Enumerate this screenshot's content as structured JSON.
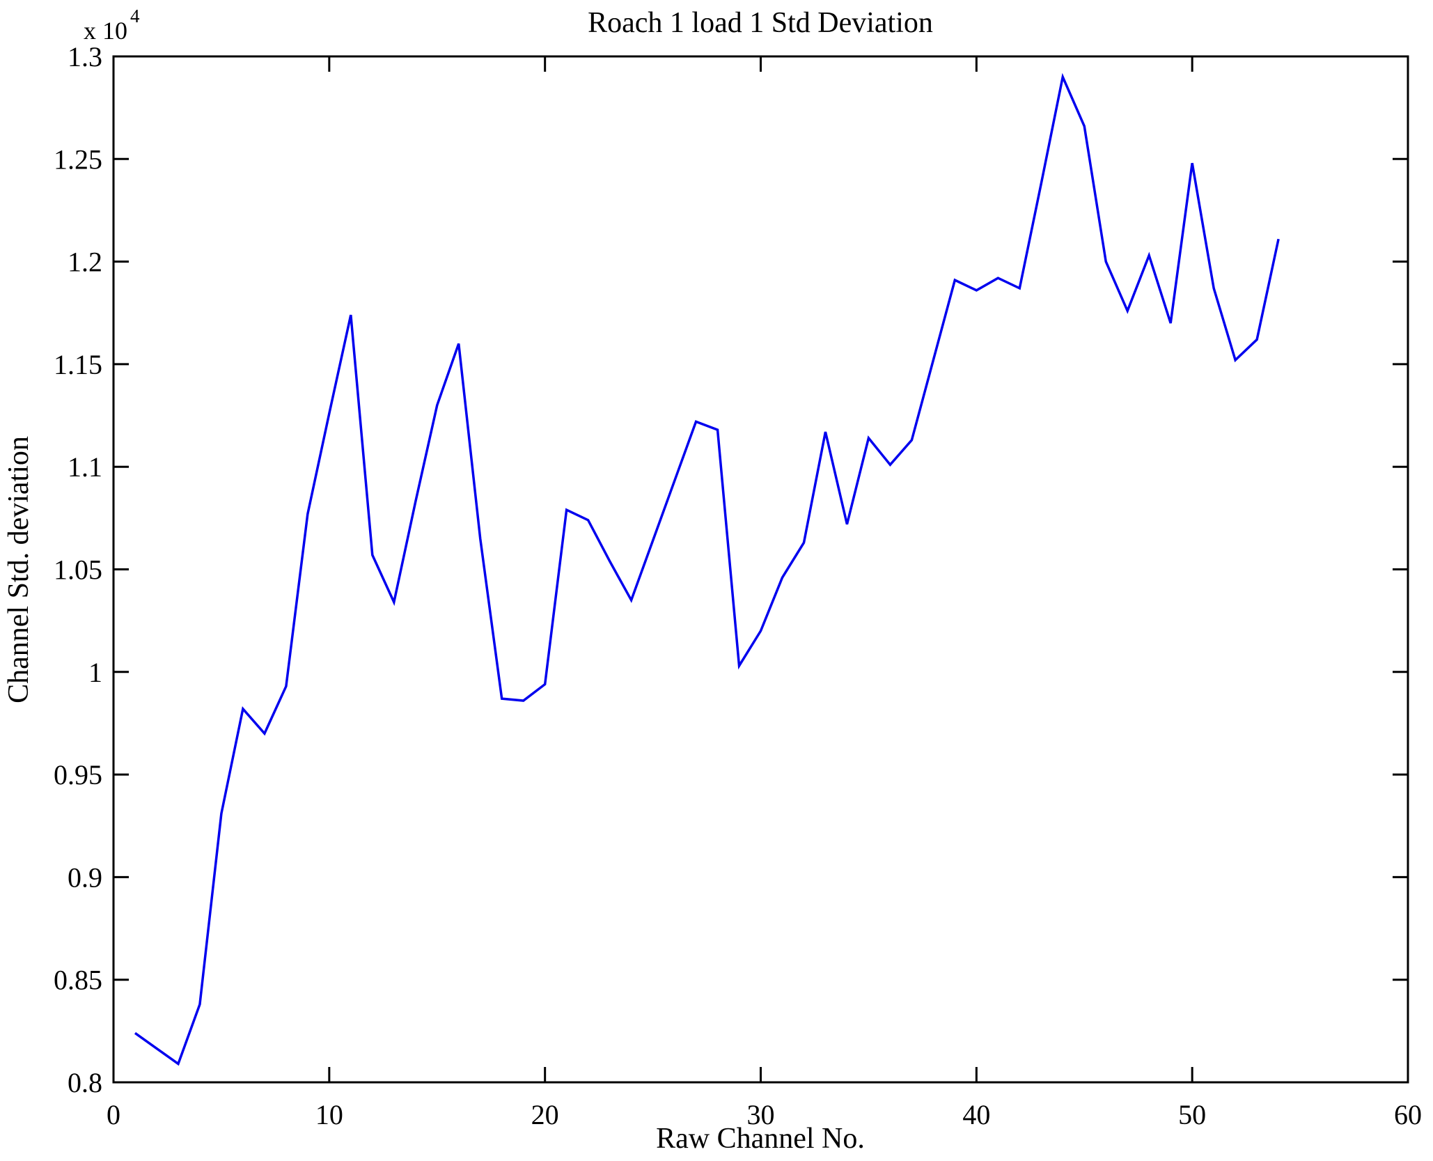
{
  "figure": {
    "background": "#ffffff",
    "axis_color": "#000000"
  },
  "chart_data": {
    "type": "line",
    "title": "Roach 1 load 1 Std Deviation",
    "xlabel": "Raw Channel No.",
    "ylabel": "Channel Std. deviation",
    "y_multiplier_base": "x 10",
    "y_multiplier_exp": "4",
    "line_color": "#0000ee",
    "grid": false,
    "legend_position": "none",
    "xlim": [
      0,
      60
    ],
    "ylim": [
      8000,
      13000
    ],
    "xtick_labels": [
      "0",
      "10",
      "20",
      "30",
      "40",
      "50",
      "60"
    ],
    "xtick_values": [
      0,
      10,
      20,
      30,
      40,
      50,
      60
    ],
    "ytick_labels": [
      "0.8",
      "0.85",
      "0.9",
      "0.95",
      "1",
      "1.05",
      "1.1",
      "1.15",
      "1.2",
      "1.25",
      "1.3"
    ],
    "ytick_values": [
      8000,
      8500,
      9000,
      9500,
      10000,
      10500,
      11000,
      11500,
      12000,
      12500,
      13000
    ],
    "x": [
      1,
      2,
      3,
      4,
      5,
      6,
      7,
      8,
      9,
      10,
      11,
      12,
      13,
      14,
      15,
      16,
      17,
      18,
      19,
      20,
      21,
      22,
      23,
      24,
      25,
      26,
      27,
      28,
      29,
      30,
      31,
      32,
      33,
      34,
      35,
      36,
      37,
      38,
      39,
      40,
      41,
      42,
      43,
      44,
      45,
      46,
      47,
      48,
      49,
      50,
      51,
      52,
      53,
      54
    ],
    "values": [
      8240,
      8165,
      8090,
      8380,
      9310,
      9820,
      9700,
      9930,
      10770,
      11260,
      11740,
      10570,
      10340,
      10830,
      11300,
      11600,
      10650,
      9870,
      9860,
      9940,
      10790,
      10740,
      10540,
      10350,
      10640,
      10930,
      11220,
      11180,
      10030,
      10200,
      10460,
      10630,
      11170,
      10720,
      11140,
      11010,
      11130,
      11520,
      11910,
      11860,
      11920,
      11870,
      12380,
      12900,
      12660,
      12000,
      11760,
      12030,
      11700,
      12480,
      11870,
      11520,
      11620,
      12110
    ]
  }
}
